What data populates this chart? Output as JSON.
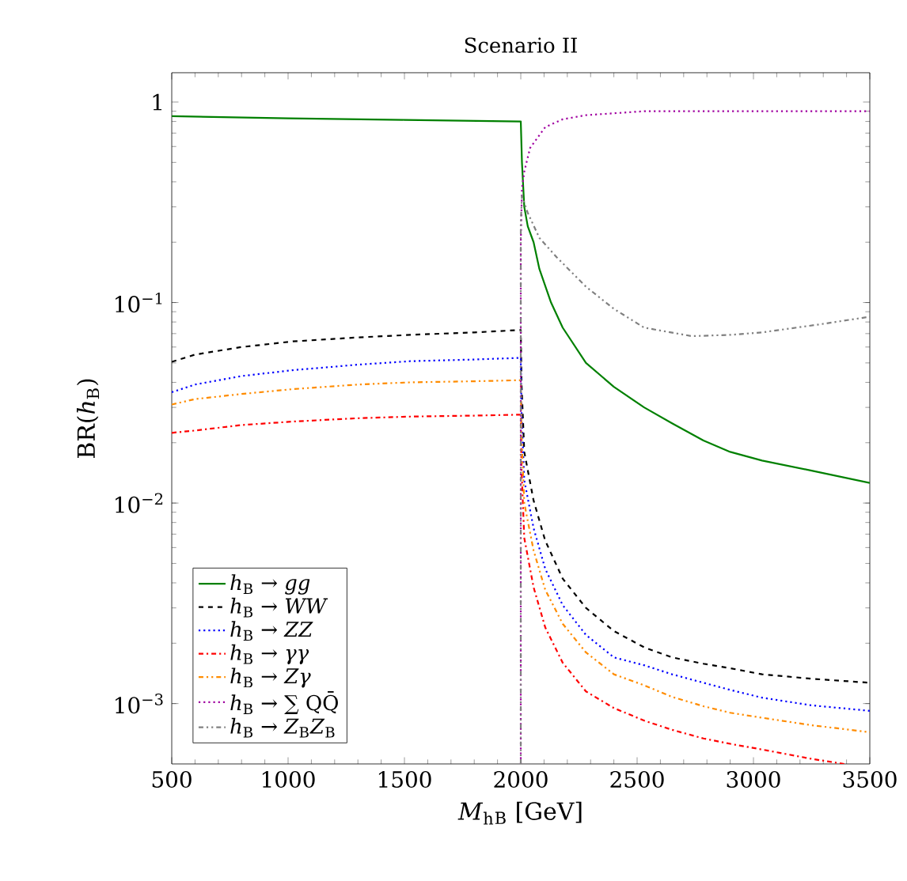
{
  "chart_data": {
    "type": "line",
    "title": "Scenario II",
    "xlabel": "*M*$_{h}$$_{B}$ [GeV]",
    "ylabel": "BR(*h*$_{B}$)",
    "log": "y",
    "xlim": [
      500,
      3500
    ],
    "ylim": [
      0.0005,
      1.4
    ],
    "xticks": [
      500,
      1000,
      1500,
      2000,
      2500,
      3000,
      3500
    ],
    "yticks": [
      {
        "value": 0.001,
        "label": "10$^{−3}$"
      },
      {
        "value": 0.01,
        "label": "10$^{−2}$"
      },
      {
        "value": 0.1,
        "label": "10$^{−1}$"
      },
      1
    ],
    "legend": "bottom left",
    "marker": "none",
    "series": [
      {
        "name": "*h*$_{B}$ → *gg*",
        "color": "#008000",
        "line_style": "solid",
        "x": [
          500,
          1000,
          1500,
          2000,
          2005,
          2015,
          2030,
          2055,
          2080,
          2130,
          2180,
          2280,
          2400,
          2530,
          2650,
          2785,
          2900,
          3037,
          3250,
          3500
        ],
        "values": [
          0.85,
          0.83,
          0.815,
          0.8,
          0.5,
          0.3,
          0.24,
          0.2,
          0.147,
          0.1,
          0.075,
          0.05,
          0.038,
          0.03,
          0.025,
          0.0205,
          0.018,
          0.0163,
          0.0145,
          0.0126
        ]
      },
      {
        "name": "*h*$_{B}$ → *WW*",
        "color": "#000000",
        "line_style": "dashed",
        "x": [
          500,
          600,
          800,
          1020,
          1300,
          1525,
          1800,
          2000,
          2003,
          2015,
          2055,
          2105,
          2180,
          2280,
          2400,
          2533,
          2650,
          2785,
          2900,
          3037,
          3250,
          3500
        ],
        "values": [
          0.0506,
          0.055,
          0.06,
          0.064,
          0.067,
          0.069,
          0.071,
          0.073,
          0.04,
          0.018,
          0.0103,
          0.0065,
          0.0042,
          0.003,
          0.0023,
          0.0019,
          0.0017,
          0.00158,
          0.0015,
          0.0014,
          0.00133,
          0.00127
        ]
      },
      {
        "name": "*h*$_{B}$ → *ZZ*",
        "color": "#0000ff",
        "line_style": "dotted",
        "x": [
          500,
          600,
          800,
          1020,
          1300,
          1525,
          1800,
          2000,
          2003,
          2015,
          2055,
          2105,
          2180,
          2280,
          2400,
          2533,
          2650,
          2785,
          2900,
          3037,
          3250,
          3500
        ],
        "values": [
          0.0357,
          0.039,
          0.043,
          0.046,
          0.049,
          0.051,
          0.052,
          0.053,
          0.029,
          0.013,
          0.0075,
          0.0047,
          0.0031,
          0.0022,
          0.0017,
          0.00155,
          0.0014,
          0.00127,
          0.00117,
          0.00107,
          0.00098,
          0.00092
        ]
      },
      {
        "name": "*h*$_{B}$ → *γγ*",
        "color": "#ff0000",
        "line_style": "dashdotted",
        "x": [
          500,
          600,
          800,
          1020,
          1300,
          1525,
          1800,
          2000,
          2003,
          2015,
          2055,
          2105,
          2180,
          2280,
          2400,
          2533,
          2650,
          2785,
          2900,
          3037,
          3250,
          3390
        ],
        "values": [
          0.0224,
          0.023,
          0.0245,
          0.0255,
          0.0265,
          0.027,
          0.0273,
          0.0276,
          0.015,
          0.0067,
          0.0038,
          0.0024,
          0.0016,
          0.00115,
          0.00095,
          0.00082,
          0.00074,
          0.00067,
          0.00063,
          0.00059,
          0.00053,
          0.0005
        ]
      },
      {
        "name": "*h*$_{B}$ → *Zγ*",
        "color": "#ff8c00",
        "line_style": "dashdotdotted",
        "x": [
          500,
          600,
          800,
          1020,
          1300,
          1525,
          1800,
          2000,
          2003,
          2015,
          2055,
          2105,
          2180,
          2280,
          2400,
          2533,
          2650,
          2785,
          2900,
          3037,
          3250,
          3500
        ],
        "values": [
          0.031,
          0.033,
          0.035,
          0.037,
          0.039,
          0.04,
          0.0405,
          0.041,
          0.022,
          0.01,
          0.0058,
          0.0037,
          0.0025,
          0.0018,
          0.0014,
          0.00123,
          0.00108,
          0.00097,
          0.0009,
          0.00085,
          0.00078,
          0.00072
        ]
      },
      {
        "name": "*h*$_{B}$ → ∑ QQ̄",
        "color": "#a000a0",
        "line_style": "dotted",
        "x": [
          2000,
          2000,
          2005,
          2015,
          2040,
          2105,
          2180,
          2280,
          2530,
          3000,
          3500
        ],
        "values": [
          0.0005,
          0.2,
          0.37,
          0.45,
          0.59,
          0.75,
          0.82,
          0.86,
          0.9,
          0.9,
          0.9
        ]
      },
      {
        "name": "*h*$_{B}$ → *Z*$_{B}$*Z*$_{B}$",
        "color": "#808080",
        "line_style": "dashdotdotted",
        "x": [
          2000,
          2000,
          2005,
          2030,
          2080,
          2155,
          2280,
          2400,
          2530,
          2735,
          2900,
          3037,
          3290,
          3500
        ],
        "values": [
          0.0005,
          0.25,
          0.34,
          0.28,
          0.21,
          0.168,
          0.12,
          0.093,
          0.075,
          0.068,
          0.069,
          0.071,
          0.078,
          0.085
        ]
      }
    ]
  }
}
